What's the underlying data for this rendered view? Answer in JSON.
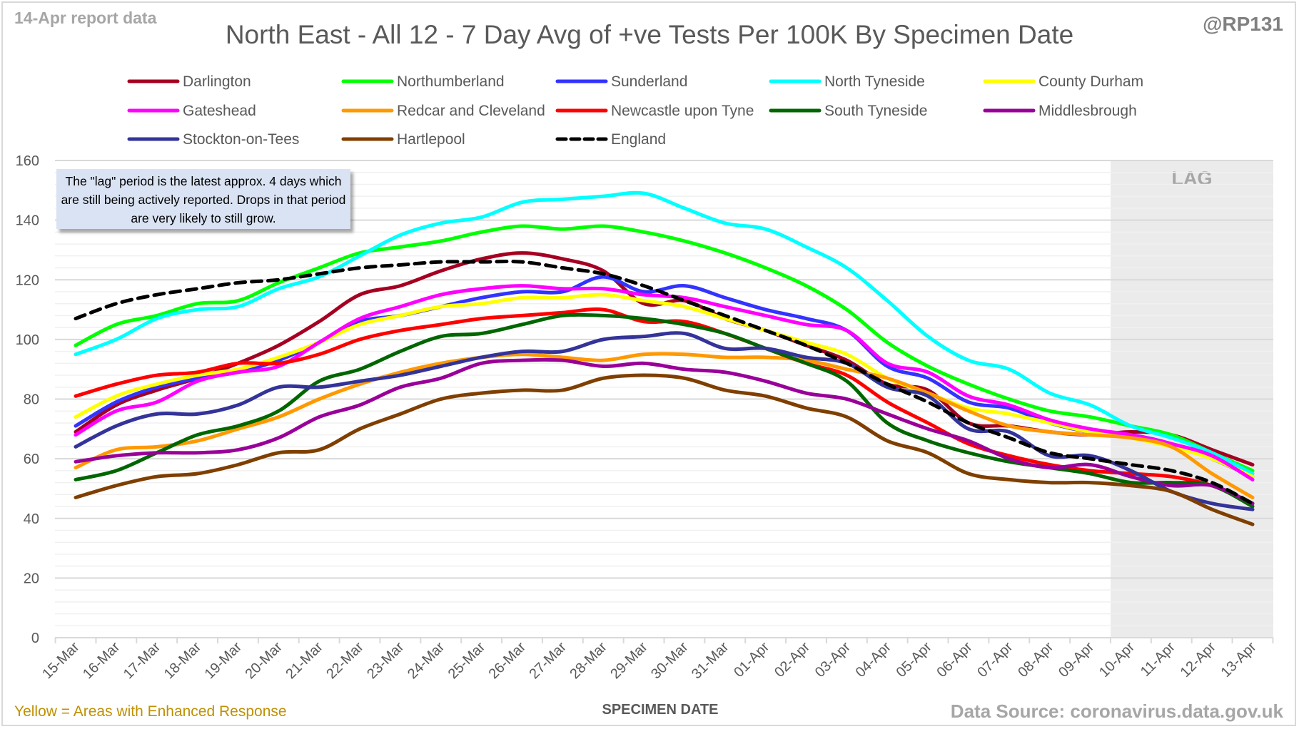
{
  "header": {
    "report_date": "14-Apr report data",
    "title": "North East - All 12 - 7 Day Avg of +ve Tests Per 100K By Specimen Date",
    "handle": "@RP131"
  },
  "footer": {
    "enhanced_note": "Yellow = Areas with Enhanced Response",
    "source": "Data Source: coronavirus.data.gov.uk"
  },
  "annotation": {
    "text": "The \"lag\" period is the latest approx. 4 days which are still being actively reported. Drops in that period are very likely to still grow."
  },
  "chart_data": {
    "type": "line",
    "title": "North East - All 12 - 7 Day Avg of +ve Tests Per 100K By Specimen Date",
    "xlabel": "SPECIMEN DATE",
    "ylabel": "",
    "ylim": [
      0,
      160
    ],
    "yticks": [
      0,
      20,
      40,
      60,
      80,
      100,
      120,
      140,
      160
    ],
    "grid": true,
    "legend": "top",
    "lag_region": {
      "label": "LAG",
      "from": "10-Apr",
      "to": "13-Apr"
    },
    "x": [
      "15-Mar",
      "16-Mar",
      "17-Mar",
      "18-Mar",
      "19-Mar",
      "20-Mar",
      "21-Mar",
      "22-Mar",
      "23-Mar",
      "24-Mar",
      "25-Mar",
      "26-Mar",
      "27-Mar",
      "28-Mar",
      "29-Mar",
      "30-Mar",
      "31-Mar",
      "01-Apr",
      "02-Apr",
      "03-Apr",
      "04-Apr",
      "05-Apr",
      "06-Apr",
      "07-Apr",
      "08-Apr",
      "09-Apr",
      "10-Apr",
      "11-Apr",
      "12-Apr",
      "13-Apr"
    ],
    "series": [
      {
        "name": "Darlington",
        "color": "#a50021",
        "dashed": false,
        "values": [
          69,
          78,
          83,
          87,
          92,
          98,
          106,
          115,
          118,
          123,
          127,
          129,
          127,
          123,
          112,
          113,
          107,
          103,
          98,
          93,
          85,
          83,
          72,
          71,
          69,
          68,
          69,
          68,
          63,
          58
        ]
      },
      {
        "name": "Northumberland",
        "color": "#00ff00",
        "dashed": false,
        "values": [
          98,
          105,
          108,
          112,
          113,
          119,
          124,
          129,
          131,
          133,
          136,
          138,
          137,
          138,
          136,
          133,
          129,
          124,
          118,
          110,
          99,
          91,
          85,
          80,
          76,
          74,
          71,
          68,
          62,
          56
        ]
      },
      {
        "name": "Sunderland",
        "color": "#3333ff",
        "dashed": false,
        "values": [
          71,
          79,
          84,
          87,
          89,
          93,
          99,
          106,
          108,
          111,
          114,
          116,
          116,
          121,
          116,
          118,
          114,
          110,
          107,
          103,
          91,
          87,
          79,
          77,
          72,
          69,
          68,
          65,
          60,
          54
        ]
      },
      {
        "name": "North Tyneside",
        "color": "#00ffff",
        "dashed": false,
        "values": [
          95,
          100,
          107,
          110,
          111,
          117,
          121,
          128,
          135,
          139,
          141,
          146,
          147,
          148,
          149,
          144,
          139,
          137,
          131,
          124,
          113,
          101,
          93,
          90,
          82,
          78,
          71,
          67,
          62,
          55
        ]
      },
      {
        "name": "County Durham",
        "color": "#ffff00",
        "dashed": false,
        "values": [
          74,
          81,
          85,
          88,
          90,
          94,
          99,
          105,
          108,
          111,
          112,
          114,
          114,
          115,
          113,
          111,
          107,
          103,
          99,
          95,
          87,
          82,
          77,
          75,
          72,
          69,
          67,
          64,
          60,
          54
        ]
      },
      {
        "name": "Gateshead",
        "color": "#ff00ff",
        "dashed": false,
        "values": [
          68,
          76,
          79,
          86,
          89,
          91,
          99,
          107,
          111,
          115,
          117,
          118,
          117,
          117,
          115,
          114,
          111,
          108,
          105,
          103,
          92,
          89,
          81,
          78,
          73,
          70,
          68,
          65,
          61,
          53
        ]
      },
      {
        "name": "Redcar and Cleveland",
        "color": "#ff9900",
        "dashed": false,
        "values": [
          57,
          63,
          64,
          66,
          70,
          74,
          80,
          85,
          89,
          92,
          94,
          95,
          94,
          93,
          95,
          95,
          94,
          94,
          93,
          90,
          87,
          82,
          76,
          71,
          69,
          68,
          67,
          64,
          55,
          47
        ]
      },
      {
        "name": "Newcastle upon Tyne",
        "color": "#ff0000",
        "dashed": false,
        "values": [
          81,
          85,
          88,
          89,
          92,
          92,
          95,
          100,
          103,
          105,
          107,
          108,
          109,
          110,
          106,
          106,
          102,
          97,
          92,
          88,
          79,
          72,
          65,
          61,
          58,
          56,
          55,
          54,
          51,
          45
        ]
      },
      {
        "name": "South Tyneside",
        "color": "#006600",
        "dashed": false,
        "values": [
          53,
          56,
          62,
          68,
          71,
          76,
          86,
          90,
          96,
          101,
          102,
          105,
          108,
          108,
          107,
          105,
          102,
          97,
          92,
          86,
          72,
          66,
          62,
          59,
          57,
          55,
          52,
          52,
          51,
          44
        ]
      },
      {
        "name": "Middlesbrough",
        "color": "#990099",
        "dashed": false,
        "values": [
          59,
          61,
          62,
          62,
          63,
          67,
          74,
          78,
          84,
          87,
          92,
          93,
          93,
          91,
          92,
          90,
          89,
          86,
          82,
          80,
          75,
          70,
          66,
          60,
          57,
          58,
          54,
          51,
          51,
          45
        ]
      },
      {
        "name": "Stockton-on-Tees",
        "color": "#333399",
        "dashed": false,
        "values": [
          64,
          71,
          75,
          75,
          78,
          84,
          84,
          86,
          88,
          91,
          94,
          96,
          96,
          100,
          101,
          102,
          97,
          97,
          94,
          92,
          84,
          81,
          70,
          69,
          61,
          61,
          56,
          49,
          45,
          43
        ]
      },
      {
        "name": "Hartlepool",
        "color": "#7f3f00",
        "dashed": false,
        "values": [
          47,
          51,
          54,
          55,
          58,
          62,
          63,
          70,
          75,
          80,
          82,
          83,
          83,
          87,
          88,
          87,
          83,
          81,
          77,
          74,
          66,
          62,
          55,
          53,
          52,
          52,
          51,
          49,
          43,
          38
        ]
      },
      {
        "name": "England",
        "color": "#000000",
        "dashed": true,
        "values": [
          107,
          112,
          115,
          117,
          119,
          120,
          122,
          124,
          125,
          126,
          126,
          126,
          124,
          122,
          118,
          113,
          108,
          103,
          98,
          92,
          85,
          79,
          72,
          67,
          62,
          60,
          58,
          56,
          52,
          45
        ]
      }
    ]
  }
}
